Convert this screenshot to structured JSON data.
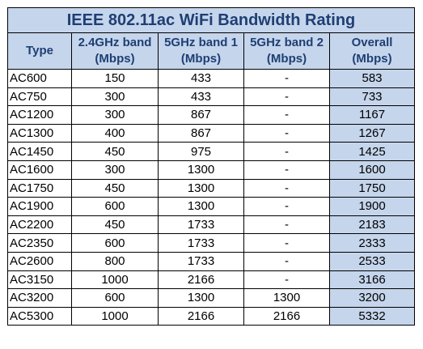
{
  "title": "IEEE 802.11ac WiFi Bandwidth Rating",
  "columns": {
    "type": "Type",
    "band24_line1": "2.4GHz band",
    "band24_line2": "(Mbps)",
    "band5a_line1": "5GHz band 1",
    "band5a_line2": "(Mbps)",
    "band5b_line1": "5GHz band 2",
    "band5b_line2": "(Mbps)",
    "overall_line1": "Overall",
    "overall_line2": "(Mbps)"
  },
  "rows": [
    {
      "type": "AC600",
      "band24": "150",
      "band5a": "433",
      "band5b": "-",
      "overall": "583"
    },
    {
      "type": "AC750",
      "band24": "300",
      "band5a": "433",
      "band5b": "-",
      "overall": "733"
    },
    {
      "type": "AC1200",
      "band24": "300",
      "band5a": "867",
      "band5b": "-",
      "overall": "1167"
    },
    {
      "type": "AC1300",
      "band24": "400",
      "band5a": "867",
      "band5b": "-",
      "overall": "1267"
    },
    {
      "type": "AC1450",
      "band24": "450",
      "band5a": "975",
      "band5b": "-",
      "overall": "1425"
    },
    {
      "type": "AC1600",
      "band24": "300",
      "band5a": "1300",
      "band5b": "-",
      "overall": "1600"
    },
    {
      "type": "AC1750",
      "band24": "450",
      "band5a": "1300",
      "band5b": "-",
      "overall": "1750"
    },
    {
      "type": "AC1900",
      "band24": "600",
      "band5a": "1300",
      "band5b": "-",
      "overall": "1900"
    },
    {
      "type": "AC2200",
      "band24": "450",
      "band5a": "1733",
      "band5b": "-",
      "overall": "2183"
    },
    {
      "type": "AC2350",
      "band24": "600",
      "band5a": "1733",
      "band5b": "-",
      "overall": "2333"
    },
    {
      "type": "AC2600",
      "band24": "800",
      "band5a": "1733",
      "band5b": "-",
      "overall": "2533"
    },
    {
      "type": "AC3150",
      "band24": "1000",
      "band5a": "2166",
      "band5b": "-",
      "overall": "3166"
    },
    {
      "type": "AC3200",
      "band24": "600",
      "band5a": "1300",
      "band5b": "1300",
      "overall": "3200"
    },
    {
      "type": "AC5300",
      "band24": "1000",
      "band5a": "2166",
      "band5b": "2166",
      "overall": "5332"
    }
  ],
  "colors": {
    "header_fill": "#c5d5ec",
    "header_text": "#1f3f73"
  }
}
